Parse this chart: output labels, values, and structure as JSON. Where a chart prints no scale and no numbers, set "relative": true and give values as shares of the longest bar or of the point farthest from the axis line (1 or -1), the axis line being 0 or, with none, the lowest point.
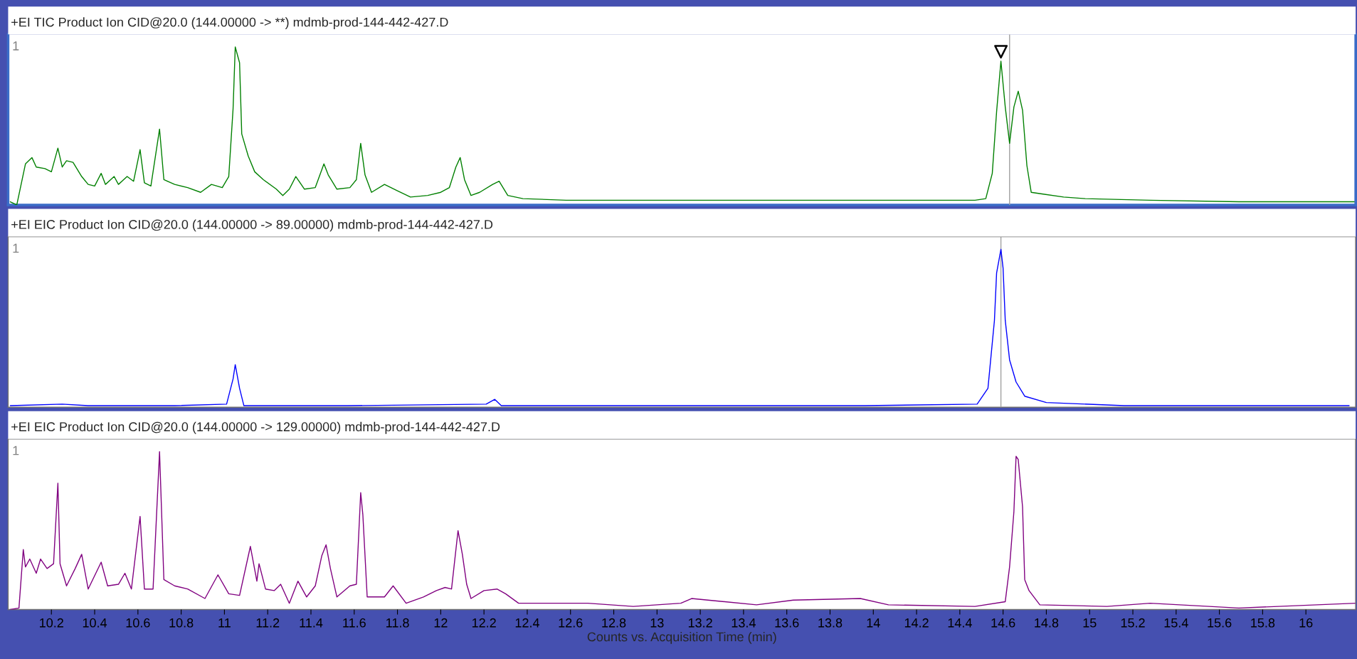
{
  "chart_data": [
    {
      "type": "line",
      "title": "+EI TIC Product Ion CID@20.0 (144.00000 -> **) mdmb-prod-144-442-427.D",
      "relative": true,
      "annotations": [
        "1"
      ],
      "xlim": [
        10.0,
        16.23
      ],
      "xticks": [
        10.2,
        10.4,
        10.6,
        10.8,
        11,
        11.2,
        11.4,
        11.6,
        11.8,
        12,
        12.2,
        12.4,
        12.6,
        12.8,
        13,
        13.2,
        13.4,
        13.6,
        13.8,
        14,
        14.2,
        14.4,
        14.6,
        14.8,
        15,
        15.2,
        15.4,
        15.6,
        15.8,
        16
      ],
      "tick_labels": false,
      "ref_lines": [
        {
          "axis": "x",
          "value": 14.63,
          "color": "#a0a0a0"
        }
      ],
      "series": [
        {
          "color": "#008000",
          "x": [
            10.01,
            10.04,
            10.06,
            10.08,
            10.11,
            10.13,
            10.17,
            10.2,
            10.23,
            10.25,
            10.27,
            10.3,
            10.34,
            10.37,
            10.4,
            10.43,
            10.45,
            10.49,
            10.51,
            10.55,
            10.58,
            10.61,
            10.63,
            10.66,
            10.7,
            10.72,
            10.77,
            10.83,
            10.89,
            10.94,
            10.99,
            11.02,
            11.04,
            11.05,
            11.07,
            11.08,
            11.11,
            11.14,
            11.18,
            11.24,
            11.27,
            11.3,
            11.33,
            11.37,
            11.42,
            11.46,
            11.48,
            11.52,
            11.58,
            11.61,
            11.63,
            11.65,
            11.68,
            11.74,
            11.8,
            11.86,
            11.94,
            12.0,
            12.04,
            12.07,
            12.09,
            12.11,
            12.14,
            12.18,
            12.24,
            12.27,
            12.31,
            12.38,
            12.58,
            12.79,
            12.99,
            13.12,
            13.46,
            13.87,
            14.27,
            14.47,
            14.52,
            14.55,
            14.57,
            14.59,
            14.61,
            14.63,
            14.65,
            14.67,
            14.69,
            14.71,
            14.73,
            14.78,
            14.88,
            14.98,
            15.28,
            15.69,
            16.23
          ],
          "values": [
            0.02,
            0,
            0.13,
            0.26,
            0.3,
            0.24,
            0.23,
            0.21,
            0.36,
            0.24,
            0.28,
            0.27,
            0.18,
            0.13,
            0.12,
            0.2,
            0.13,
            0.18,
            0.13,
            0.18,
            0.15,
            0.35,
            0.14,
            0.12,
            0.48,
            0.16,
            0.13,
            0.11,
            0.08,
            0.13,
            0.11,
            0.18,
            0.61,
            1.0,
            0.9,
            0.45,
            0.31,
            0.21,
            0.16,
            0.1,
            0.06,
            0.1,
            0.18,
            0.1,
            0.11,
            0.26,
            0.19,
            0.1,
            0.11,
            0.16,
            0.39,
            0.19,
            0.08,
            0.13,
            0.09,
            0.05,
            0.06,
            0.08,
            0.11,
            0.24,
            0.3,
            0.16,
            0.06,
            0.08,
            0.13,
            0.15,
            0.06,
            0.04,
            0.03,
            0.03,
            0.03,
            0.03,
            0.03,
            0.03,
            0.03,
            0.03,
            0.04,
            0.2,
            0.59,
            0.91,
            0.62,
            0.39,
            0.62,
            0.72,
            0.6,
            0.25,
            0.08,
            0.07,
            0.05,
            0.04,
            0.03,
            0.02,
            0.02
          ]
        },
        {
          "type": "scatter",
          "marker": "triangle",
          "color": "#000000",
          "x": [
            14.59
          ],
          "values": [
            0.97
          ]
        }
      ]
    },
    {
      "type": "line",
      "title": "+EI EIC Product Ion CID@20.0 (144.00000 -> 89.00000) mdmb-prod-144-442-427.D",
      "relative": true,
      "annotations": [
        "1"
      ],
      "xlim": [
        10.0,
        16.23
      ],
      "xticks": [
        10.2,
        10.4,
        10.6,
        10.8,
        11,
        11.2,
        11.4,
        11.6,
        11.8,
        12,
        12.2,
        12.4,
        12.6,
        12.8,
        13,
        13.2,
        13.4,
        13.6,
        13.8,
        14,
        14.2,
        14.4,
        14.6,
        14.8,
        15,
        15.2,
        15.4,
        15.6,
        15.8,
        16
      ],
      "tick_labels": false,
      "ref_lines": [
        {
          "axis": "x",
          "value": 14.59,
          "color": "#a0a0a0"
        }
      ],
      "series": [
        {
          "color": "#0000ff",
          "x": [
            10.01,
            10.25,
            10.37,
            10.77,
            11.01,
            11.04,
            11.05,
            11.07,
            11.09,
            11.57,
            12.21,
            12.25,
            12.28,
            13.16,
            13.96,
            14.48,
            14.53,
            14.56,
            14.57,
            14.59,
            14.6,
            14.61,
            14.63,
            14.66,
            14.7,
            14.8,
            15.16,
            16.2
          ],
          "values": [
            0.01,
            0.02,
            0.01,
            0.01,
            0.02,
            0.18,
            0.27,
            0.12,
            0.01,
            0.01,
            0.02,
            0.05,
            0.01,
            0.01,
            0.01,
            0.02,
            0.12,
            0.55,
            0.85,
            1.0,
            0.88,
            0.55,
            0.3,
            0.16,
            0.07,
            0.03,
            0.01,
            0.01
          ]
        }
      ]
    },
    {
      "type": "line",
      "title": "+EI EIC Product Ion CID@20.0 (144.00000 -> 129.00000) mdmb-prod-144-442-427.D",
      "xlabel": "Counts vs. Acquisition Time (min)",
      "relative": true,
      "annotations": [
        "1"
      ],
      "xlim": [
        10.0,
        16.23
      ],
      "xticks": [
        10.2,
        10.4,
        10.6,
        10.8,
        11,
        11.2,
        11.4,
        11.6,
        11.8,
        12,
        12.2,
        12.4,
        12.6,
        12.8,
        13,
        13.2,
        13.4,
        13.6,
        13.8,
        14,
        14.2,
        14.4,
        14.6,
        14.8,
        15,
        15.2,
        15.4,
        15.6,
        15.8,
        16
      ],
      "tick_labels": "x",
      "series": [
        {
          "color": "#800080",
          "x": [
            10.01,
            10.05,
            10.07,
            10.08,
            10.1,
            10.13,
            10.15,
            10.18,
            10.21,
            10.23,
            10.24,
            10.27,
            10.31,
            10.34,
            10.37,
            10.43,
            10.46,
            10.51,
            10.54,
            10.57,
            10.61,
            10.63,
            10.67,
            10.7,
            10.72,
            10.77,
            10.83,
            10.91,
            10.97,
            11.02,
            11.07,
            11.12,
            11.15,
            11.16,
            11.19,
            11.23,
            11.26,
            11.3,
            11.34,
            11.38,
            11.42,
            11.45,
            11.47,
            11.49,
            11.52,
            11.58,
            11.61,
            11.63,
            11.64,
            11.66,
            11.74,
            11.78,
            11.84,
            11.92,
            11.98,
            12.02,
            12.05,
            12.08,
            12.1,
            12.12,
            12.14,
            12.2,
            12.26,
            12.3,
            12.36,
            12.48,
            12.68,
            12.89,
            13.11,
            13.16,
            13.46,
            13.63,
            13.94,
            14.07,
            14.47,
            14.61,
            14.63,
            14.65,
            14.66,
            14.67,
            14.69,
            14.7,
            14.72,
            14.77,
            15.08,
            15.28,
            15.69,
            16.23
          ],
          "values": [
            0,
            0.01,
            0.38,
            0.27,
            0.32,
            0.23,
            0.32,
            0.26,
            0.29,
            0.8,
            0.29,
            0.15,
            0.26,
            0.35,
            0.13,
            0.3,
            0.15,
            0.16,
            0.23,
            0.13,
            0.59,
            0.13,
            0.13,
            1.0,
            0.19,
            0.15,
            0.13,
            0.07,
            0.22,
            0.1,
            0.09,
            0.4,
            0.18,
            0.29,
            0.13,
            0.12,
            0.16,
            0.04,
            0.18,
            0.08,
            0.15,
            0.34,
            0.41,
            0.26,
            0.08,
            0.15,
            0.16,
            0.74,
            0.6,
            0.08,
            0.08,
            0.15,
            0.04,
            0.08,
            0.12,
            0.14,
            0.13,
            0.5,
            0.35,
            0.16,
            0.07,
            0.12,
            0.13,
            0.1,
            0.04,
            0.04,
            0.04,
            0.02,
            0.04,
            0.07,
            0.03,
            0.06,
            0.07,
            0.03,
            0.02,
            0.05,
            0.27,
            0.62,
            0.97,
            0.95,
            0.65,
            0.19,
            0.12,
            0.03,
            0.02,
            0.04,
            0.01,
            0.04
          ]
        }
      ]
    }
  ]
}
